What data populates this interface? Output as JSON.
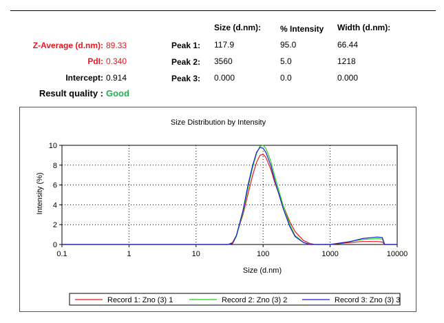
{
  "results": {
    "z_average": {
      "label": "Z-Average (d.nm):",
      "value": "89.33"
    },
    "pdi": {
      "label": "PdI:",
      "value": "0.340"
    },
    "intercept": {
      "label": "Intercept:",
      "value": "0.914"
    },
    "result_quality": {
      "label": "Result quality :",
      "value": "Good"
    }
  },
  "peaks_table": {
    "headers": [
      "Size (d.nm):",
      "% Intensity",
      "Width (d.nm):"
    ],
    "rows": [
      {
        "label": "Peak 1:",
        "size": "117.9",
        "intensity": "95.0",
        "width": "66.44"
      },
      {
        "label": "Peak 2:",
        "size": "3560",
        "intensity": "5.0",
        "width": "1218"
      },
      {
        "label": "Peak 3:",
        "size": "0.000",
        "intensity": "0.0",
        "width": "0.000"
      }
    ]
  },
  "colors": {
    "red": "#e8161f",
    "green": "#1db34f",
    "series1": "#e8161f",
    "series2": "#1ed41e",
    "series3": "#1a1ad6"
  },
  "chart_data": {
    "type": "line",
    "title": "Size Distribution by Intensity",
    "xlabel": "Size (d.nm)",
    "ylabel": "Intensity (%)",
    "x_scale": "log",
    "xlim": [
      0.1,
      10000
    ],
    "ylim": [
      0,
      10
    ],
    "x_ticks": [
      "0.1",
      "1",
      "10",
      "100",
      "1000",
      "10000"
    ],
    "y_ticks": [
      "0",
      "2",
      "4",
      "6",
      "8",
      "10"
    ],
    "grid": true,
    "legend_position": "bottom",
    "series": [
      {
        "name": "Record 1: Zno (3) 1",
        "x": [
          0.1,
          30,
          35,
          40,
          50,
          60,
          70,
          80,
          90,
          100,
          110,
          130,
          150,
          200,
          250,
          300,
          400,
          500,
          600,
          800,
          1000,
          2000,
          3000,
          5000,
          6000,
          6500,
          10000
        ],
        "y": [
          0,
          0,
          0.2,
          0.9,
          3.0,
          5.2,
          7.0,
          8.3,
          9.0,
          9.1,
          8.8,
          7.6,
          6.2,
          3.9,
          2.3,
          1.3,
          0.4,
          0.1,
          0,
          0,
          0,
          0.2,
          0.3,
          0.3,
          0.25,
          0,
          0
        ]
      },
      {
        "name": "Record 2: Zno (3) 2",
        "x": [
          0.1,
          30,
          35,
          40,
          50,
          60,
          70,
          80,
          90,
          100,
          110,
          130,
          150,
          200,
          250,
          300,
          400,
          500,
          600,
          800,
          1000,
          2000,
          3000,
          5000,
          6000,
          6500,
          10000
        ],
        "y": [
          0,
          0,
          0.1,
          0.8,
          3.2,
          5.8,
          7.8,
          9.2,
          9.9,
          10.0,
          9.7,
          8.4,
          6.8,
          3.9,
          2.0,
          0.9,
          0.2,
          0,
          0,
          0,
          0,
          0.3,
          0.5,
          0.6,
          0.55,
          0,
          0
        ]
      },
      {
        "name": "Record 3: Zno (3) 3",
        "x": [
          0.1,
          30,
          35,
          40,
          50,
          60,
          70,
          80,
          90,
          100,
          110,
          130,
          150,
          200,
          250,
          300,
          400,
          500,
          600,
          800,
          1000,
          2000,
          3000,
          5000,
          6000,
          6500,
          10000
        ],
        "y": [
          0,
          0,
          0.1,
          0.9,
          3.4,
          6.1,
          8.0,
          9.3,
          9.8,
          9.7,
          9.3,
          8.0,
          6.4,
          3.6,
          1.8,
          0.8,
          0.2,
          0,
          0,
          0,
          0,
          0.3,
          0.6,
          0.75,
          0.7,
          0,
          0
        ]
      }
    ]
  }
}
